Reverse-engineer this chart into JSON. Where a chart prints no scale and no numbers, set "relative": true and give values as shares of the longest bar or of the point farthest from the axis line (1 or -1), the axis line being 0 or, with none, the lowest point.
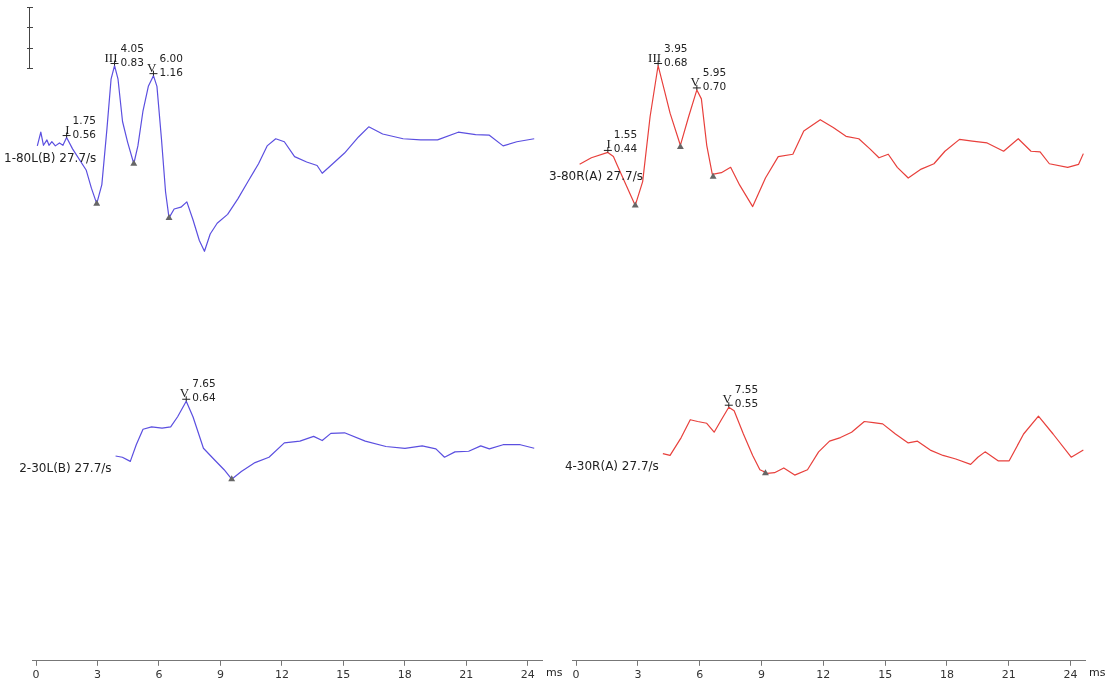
{
  "chart_data": [
    {
      "type": "line",
      "relative": true,
      "xlabel": "ms",
      "xlim": [
        -0.2,
        24.7
      ],
      "xticks": [
        0,
        3,
        6,
        9,
        12,
        15,
        18,
        21,
        24
      ],
      "grid": false,
      "legend": false,
      "marker": "none",
      "line_style": "solid",
      "series": [
        {
          "name": "1-80L(B) 27.7/s",
          "color": "#5b4fe0",
          "x": [
            0.06,
            0.23,
            0.36,
            0.53,
            0.63,
            0.77,
            0.94,
            1.14,
            1.31,
            1.49,
            1.78,
            2.45,
            2.7,
            2.96,
            3.21,
            3.46,
            3.66,
            3.83,
            4.0,
            4.22,
            4.47,
            4.77,
            4.97,
            5.22,
            5.48,
            5.73,
            5.9,
            6.12,
            6.32,
            6.49,
            6.74,
            7.07,
            7.36,
            7.66,
            7.97,
            8.22,
            8.5,
            8.84,
            9.35,
            9.85,
            10.36,
            10.86,
            11.28,
            11.7,
            12.12,
            12.62,
            13.21,
            13.72,
            13.97,
            14.39,
            15.06,
            15.74,
            16.24,
            16.92,
            17.92,
            18.77,
            19.6,
            20.61,
            21.46,
            22.13,
            22.8,
            23.47,
            24.32
          ],
          "values": [
            0.865,
            0.888,
            0.866,
            0.875,
            0.866,
            0.872,
            0.865,
            0.87,
            0.866,
            0.879,
            0.86,
            0.824,
            0.794,
            0.768,
            0.8,
            0.894,
            0.977,
            1.0,
            0.977,
            0.906,
            0.871,
            0.835,
            0.865,
            0.924,
            0.965,
            0.983,
            0.965,
            0.877,
            0.788,
            0.744,
            0.759,
            0.762,
            0.771,
            0.741,
            0.706,
            0.688,
            0.717,
            0.735,
            0.75,
            0.776,
            0.806,
            0.835,
            0.865,
            0.877,
            0.872,
            0.847,
            0.838,
            0.832,
            0.819,
            0.832,
            0.853,
            0.88,
            0.897,
            0.885,
            0.877,
            0.875,
            0.875,
            0.888,
            0.884,
            0.883,
            0.865,
            0.872,
            0.877
          ]
        },
        {
          "name": "2-30L(B) 27.7/s",
          "color": "#5b4fe0",
          "x": [
            3.88,
            4.21,
            4.6,
            4.89,
            5.22,
            5.64,
            6.15,
            6.57,
            6.91,
            7.33,
            7.66,
            8.17,
            8.67,
            9.18,
            9.55,
            10.02,
            10.69,
            11.37,
            12.12,
            12.88,
            13.55,
            13.97,
            14.39,
            15.06,
            16.07,
            17.08,
            18.01,
            18.85,
            19.52,
            19.94,
            20.45,
            21.12,
            21.71,
            22.13,
            22.8,
            23.64,
            24.32
          ],
          "values": [
            0.344,
            0.342,
            0.335,
            0.363,
            0.389,
            0.393,
            0.391,
            0.393,
            0.41,
            0.436,
            0.41,
            0.357,
            0.339,
            0.321,
            0.305,
            0.318,
            0.333,
            0.342,
            0.366,
            0.369,
            0.377,
            0.37,
            0.382,
            0.383,
            0.369,
            0.36,
            0.357,
            0.361,
            0.356,
            0.342,
            0.351,
            0.352,
            0.361,
            0.356,
            0.363,
            0.363,
            0.357
          ]
        },
        {
          "type": "scatter",
          "marker": "triangle",
          "color": "#666666",
          "x": [
            2.96,
            4.77,
            6.49,
            9.55
          ],
          "values": [
            0.768,
            0.835,
            0.744,
            0.305
          ]
        }
      ],
      "annotations": [
        {
          "text": "I",
          "x": 1.49,
          "y": 0.879
        },
        {
          "text": "1.75",
          "x": 1.49,
          "y": 0.879
        },
        {
          "text": "0.56",
          "x": 1.49,
          "y": 0.879
        },
        {
          "text": "III",
          "x": 3.83,
          "y": 1.0
        },
        {
          "text": "4.05",
          "x": 3.83,
          "y": 1.0
        },
        {
          "text": "0.83",
          "x": 3.83,
          "y": 1.0
        },
        {
          "text": "V",
          "x": 5.73,
          "y": 0.983
        },
        {
          "text": "6.00",
          "x": 5.73,
          "y": 0.983
        },
        {
          "text": "1.16",
          "x": 5.73,
          "y": 0.983
        },
        {
          "text": "V",
          "x": 7.33,
          "y": 0.436
        },
        {
          "text": "7.65",
          "x": 7.33,
          "y": 0.436
        },
        {
          "text": "0.64",
          "x": 7.33,
          "y": 0.436
        }
      ]
    },
    {
      "type": "line",
      "relative": true,
      "xlabel": "ms",
      "xlim": [
        -0.2,
        24.7
      ],
      "xticks": [
        0,
        3,
        6,
        9,
        12,
        15,
        18,
        21,
        24
      ],
      "grid": false,
      "legend": false,
      "marker": "none",
      "line_style": "solid",
      "series": [
        {
          "name": "3-80R(A) 27.7/s",
          "color": "#e8403c",
          "x": [
            0.17,
            0.74,
            1.54,
            1.81,
            1.99,
            2.43,
            2.87,
            3.23,
            3.59,
            3.98,
            4.3,
            4.56,
            5.06,
            5.46,
            5.86,
            6.08,
            6.34,
            6.61,
            7.05,
            7.5,
            7.94,
            8.57,
            9.19,
            9.81,
            10.52,
            11.05,
            11.85,
            12.48,
            13.1,
            13.72,
            14.26,
            14.7,
            15.15,
            15.59,
            16.12,
            16.75,
            17.37,
            17.9,
            18.61,
            19.23,
            19.95,
            20.75,
            21.46,
            22.08,
            22.52,
            22.97,
            23.86,
            24.39,
            24.62
          ],
          "values": [
            0.834,
            0.845,
            0.854,
            0.847,
            0.833,
            0.799,
            0.765,
            0.805,
            0.914,
            1.0,
            0.956,
            0.92,
            0.866,
            0.914,
            0.959,
            0.944,
            0.866,
            0.817,
            0.82,
            0.829,
            0.799,
            0.763,
            0.811,
            0.847,
            0.851,
            0.89,
            0.909,
            0.896,
            0.881,
            0.877,
            0.86,
            0.845,
            0.851,
            0.829,
            0.811,
            0.826,
            0.835,
            0.856,
            0.876,
            0.873,
            0.87,
            0.856,
            0.877,
            0.856,
            0.855,
            0.835,
            0.829,
            0.834,
            0.852
          ]
        },
        {
          "name": "4-30R(A) 27.7/s",
          "color": "#e8403c",
          "x": [
            4.21,
            4.56,
            5.1,
            5.54,
            5.9,
            6.34,
            6.7,
            7.05,
            7.41,
            7.67,
            8.12,
            8.57,
            8.92,
            9.28,
            9.63,
            10.08,
            10.61,
            11.23,
            11.77,
            12.3,
            12.83,
            13.37,
            13.99,
            14.43,
            14.88,
            15.5,
            16.12,
            16.57,
            17.19,
            17.81,
            18.43,
            19.15,
            19.5,
            19.85,
            20.48,
            21.02,
            21.72,
            22.44,
            23.15,
            24.03,
            24.62
          ],
          "values": [
            0.348,
            0.345,
            0.375,
            0.405,
            0.402,
            0.399,
            0.384,
            0.405,
            0.426,
            0.42,
            0.381,
            0.345,
            0.321,
            0.315,
            0.316,
            0.324,
            0.312,
            0.321,
            0.351,
            0.369,
            0.375,
            0.384,
            0.402,
            0.4,
            0.398,
            0.381,
            0.366,
            0.369,
            0.354,
            0.345,
            0.339,
            0.33,
            0.342,
            0.351,
            0.336,
            0.336,
            0.381,
            0.411,
            0.381,
            0.342,
            0.354
          ]
        },
        {
          "type": "scatter",
          "marker": "triangle",
          "color": "#666666",
          "x": [
            2.87,
            5.06,
            6.65,
            9.19
          ],
          "values": [
            0.765,
            0.863,
            0.813,
            0.315
          ]
        }
      ],
      "annotations": [
        {
          "text": "I",
          "x": 1.54,
          "y": 0.854
        },
        {
          "text": "1.55",
          "x": 1.54,
          "y": 0.854
        },
        {
          "text": "0.44",
          "x": 1.54,
          "y": 0.854
        },
        {
          "text": "III",
          "x": 3.98,
          "y": 1.0
        },
        {
          "text": "3.95",
          "x": 3.98,
          "y": 1.0
        },
        {
          "text": "0.68",
          "x": 3.98,
          "y": 1.0
        },
        {
          "text": "V",
          "x": 5.86,
          "y": 0.959
        },
        {
          "text": "5.95",
          "x": 5.86,
          "y": 0.959
        },
        {
          "text": "0.70",
          "x": 5.86,
          "y": 0.959
        },
        {
          "text": "V",
          "x": 7.41,
          "y": 0.426
        },
        {
          "text": "7.55",
          "x": 7.41,
          "y": 0.426
        },
        {
          "text": "0.55",
          "x": 7.41,
          "y": 0.426
        }
      ]
    }
  ]
}
